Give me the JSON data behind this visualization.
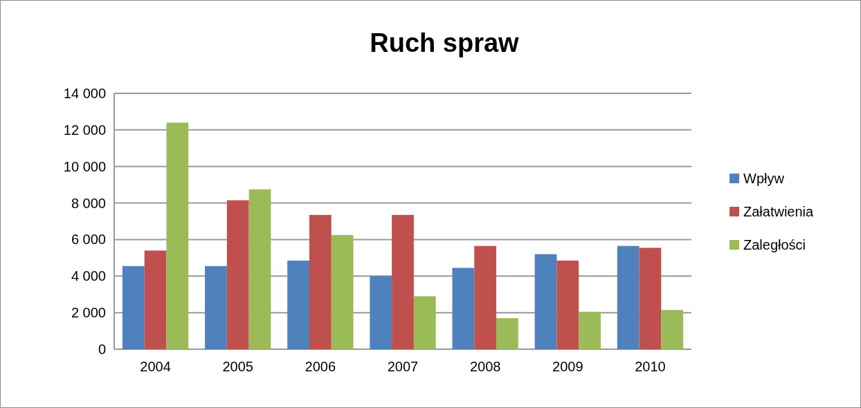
{
  "chart_data": {
    "type": "bar",
    "title": "Ruch spraw",
    "categories": [
      "2004",
      "2005",
      "2006",
      "2007",
      "2008",
      "2009",
      "2010"
    ],
    "series": [
      {
        "name": "Wpływ",
        "color": "#4f81bd",
        "values": [
          4550,
          4550,
          4850,
          4000,
          4450,
          5200,
          5650
        ]
      },
      {
        "name": "Załatwienia",
        "color": "#c0504d",
        "values": [
          5400,
          8150,
          7350,
          7350,
          5650,
          4850,
          5550
        ]
      },
      {
        "name": "Zaległości",
        "color": "#9bbb59",
        "values": [
          12400,
          8750,
          6250,
          2900,
          1700,
          2050,
          2150
        ]
      }
    ],
    "ylim": [
      0,
      14000
    ],
    "yticks": [
      {
        "value": 0,
        "label": "0"
      },
      {
        "value": 2000,
        "label": "2 000"
      },
      {
        "value": 4000,
        "label": "4 000"
      },
      {
        "value": 6000,
        "label": "6 000"
      },
      {
        "value": 8000,
        "label": "8 000"
      },
      {
        "value": 10000,
        "label": "10 000"
      },
      {
        "value": 12000,
        "label": "12 000"
      },
      {
        "value": 14000,
        "label": "14 000"
      }
    ],
    "grid": "y",
    "legend": "right"
  }
}
